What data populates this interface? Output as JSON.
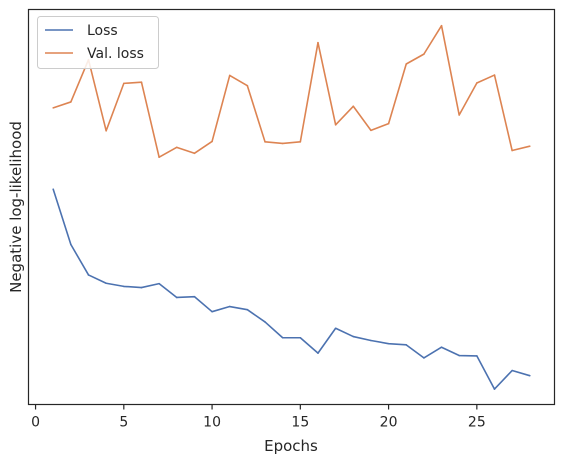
{
  "chart_data": {
    "type": "line",
    "title": "",
    "xlabel": "Epochs",
    "ylabel": "Negative log-likelihood",
    "xlim": [
      -0.4,
      29.4
    ],
    "ylim": [
      0,
      1
    ],
    "xticks": [
      "0",
      "5",
      "10",
      "15",
      "20",
      "25"
    ],
    "y_tick_labels_shown": false,
    "grid": false,
    "legend_position": "upper-left",
    "x": [
      1,
      2,
      3,
      4,
      5,
      6,
      7,
      8,
      9,
      10,
      11,
      12,
      13,
      14,
      15,
      16,
      17,
      18,
      19,
      20,
      21,
      22,
      23,
      24,
      25,
      26,
      27,
      28
    ],
    "series": [
      {
        "name": "Loss",
        "color": "#4c72b0",
        "values": [
          0.545,
          0.405,
          0.328,
          0.307,
          0.299,
          0.296,
          0.306,
          0.271,
          0.273,
          0.235,
          0.248,
          0.24,
          0.209,
          0.169,
          0.169,
          0.13,
          0.193,
          0.172,
          0.162,
          0.154,
          0.151,
          0.118,
          0.145,
          0.124,
          0.123,
          0.039,
          0.086,
          0.073
        ]
      },
      {
        "name": "Val. loss",
        "color": "#dd8452",
        "values": [
          0.751,
          0.766,
          0.873,
          0.693,
          0.813,
          0.816,
          0.626,
          0.651,
          0.636,
          0.666,
          0.833,
          0.807,
          0.665,
          0.661,
          0.665,
          0.916,
          0.708,
          0.755,
          0.694,
          0.711,
          0.862,
          0.887,
          0.959,
          0.733,
          0.814,
          0.834,
          0.643,
          0.654
        ]
      }
    ]
  }
}
